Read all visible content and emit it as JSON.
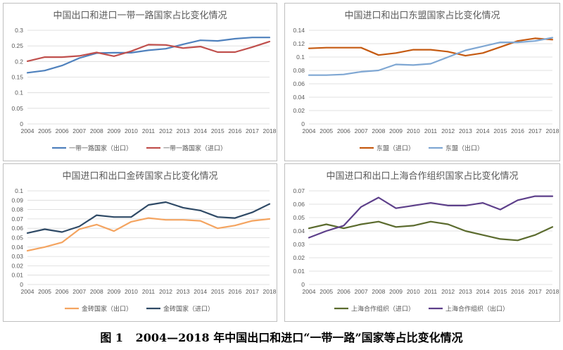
{
  "figure": {
    "caption_label": "图 1",
    "caption_text": "2004—2018 年中国出口和进口“一带一路”国家等占比变化情况"
  },
  "chart_data": [
    {
      "type": "line",
      "title": "中国出口和进口一带一路国家占比变化情况",
      "x": [
        "2004",
        "2005",
        "2006",
        "2007",
        "2008",
        "2009",
        "2010",
        "2011",
        "2012",
        "2013",
        "2014",
        "2015",
        "2016",
        "2017",
        "2018"
      ],
      "ylim": [
        0,
        0.3
      ],
      "yticks": [
        "0",
        "0.05",
        "0.1",
        "0.15",
        "0.2",
        "0.25",
        "0.3"
      ],
      "yticks_values": [
        0,
        0.05,
        0.1,
        0.15,
        0.2,
        0.25,
        0.3
      ],
      "grid": true,
      "legend": "bottom",
      "series": [
        {
          "name": "一带一路国家（出口）",
          "color": "#4f81bd",
          "values": [
            0.164,
            0.171,
            0.187,
            0.211,
            0.227,
            0.228,
            0.228,
            0.236,
            0.241,
            0.255,
            0.268,
            0.266,
            0.273,
            0.277,
            0.277
          ]
        },
        {
          "name": "一带一路国家（进口）",
          "color": "#c0504d",
          "values": [
            0.201,
            0.214,
            0.214,
            0.218,
            0.229,
            0.217,
            0.233,
            0.254,
            0.253,
            0.243,
            0.248,
            0.23,
            0.23,
            0.246,
            0.264
          ]
        }
      ]
    },
    {
      "type": "line",
      "title": "中国进口和出口东盟国家占比变化情况",
      "x": [
        "2004",
        "2005",
        "2006",
        "2007",
        "2008",
        "2009",
        "2010",
        "2011",
        "2012",
        "2013",
        "2014",
        "2015",
        "2016",
        "2017",
        "2018"
      ],
      "ylim": [
        0,
        0.14
      ],
      "yticks": [
        "0",
        "0.02",
        "0.04",
        "0.06",
        "0.08",
        "0.1",
        "0.12",
        "0.14"
      ],
      "yticks_values": [
        0,
        0.02,
        0.04,
        0.06,
        0.08,
        0.1,
        0.12,
        0.14
      ],
      "grid": true,
      "legend": "bottom",
      "series": [
        {
          "name": "东盟（进口）",
          "color": "#c55a11",
          "values": [
            0.113,
            0.114,
            0.114,
            0.114,
            0.103,
            0.106,
            0.111,
            0.111,
            0.108,
            0.102,
            0.106,
            0.115,
            0.124,
            0.128,
            0.126
          ]
        },
        {
          "name": "东盟（出口）",
          "color": "#7fa7d3",
          "values": [
            0.073,
            0.073,
            0.074,
            0.078,
            0.08,
            0.089,
            0.088,
            0.09,
            0.1,
            0.11,
            0.116,
            0.122,
            0.122,
            0.124,
            0.129
          ]
        }
      ]
    },
    {
      "type": "line",
      "title": "中国进口和出口金砖国家占比变化情况",
      "x": [
        "2004",
        "2005",
        "2006",
        "2007",
        "2008",
        "2009",
        "2010",
        "2011",
        "2012",
        "2013",
        "2014",
        "2015",
        "2016",
        "2017",
        "2018"
      ],
      "ylim": [
        0,
        0.1
      ],
      "yticks": [
        "0",
        "0.01",
        "0.02",
        "0.03",
        "0.04",
        "0.05",
        "0.06",
        "0.07",
        "0.08",
        "0.09",
        "0.1"
      ],
      "yticks_values": [
        0,
        0.01,
        0.02,
        0.03,
        0.04,
        0.05,
        0.06,
        0.07,
        0.08,
        0.09,
        0.1
      ],
      "grid": true,
      "legend": "bottom",
      "series": [
        {
          "name": "金砖国家（出口）",
          "color": "#f4a460",
          "values": [
            0.036,
            0.04,
            0.045,
            0.059,
            0.064,
            0.057,
            0.067,
            0.071,
            0.069,
            0.069,
            0.068,
            0.06,
            0.063,
            0.068,
            0.07
          ]
        },
        {
          "name": "金砖国家（进口）",
          "color": "#2f4a66",
          "values": [
            0.055,
            0.059,
            0.056,
            0.062,
            0.074,
            0.072,
            0.072,
            0.085,
            0.088,
            0.082,
            0.079,
            0.072,
            0.071,
            0.077,
            0.086
          ]
        }
      ]
    },
    {
      "type": "line",
      "title": "中国进口和出口上海合作组织国家占比变化情况",
      "x": [
        "2004",
        "2005",
        "2006",
        "2007",
        "2008",
        "2009",
        "2010",
        "2011",
        "2012",
        "2013",
        "2014",
        "2015",
        "2016",
        "2017",
        "2018"
      ],
      "ylim": [
        0,
        0.07
      ],
      "yticks": [
        "0",
        "0.01",
        "0.02",
        "0.03",
        "0.04",
        "0.05",
        "0.06",
        "0.07"
      ],
      "yticks_values": [
        0,
        0.01,
        0.02,
        0.03,
        0.04,
        0.05,
        0.06,
        0.07
      ],
      "grid": true,
      "legend": "bottom",
      "series": [
        {
          "name": "上海合作组织（进口）",
          "color": "#5b6b2e",
          "values": [
            0.042,
            0.045,
            0.042,
            0.045,
            0.047,
            0.043,
            0.044,
            0.047,
            0.045,
            0.04,
            0.037,
            0.034,
            0.033,
            0.037,
            0.043
          ]
        },
        {
          "name": "上海合作组织（出口）",
          "color": "#5d3f8a",
          "values": [
            0.035,
            0.04,
            0.044,
            0.058,
            0.065,
            0.057,
            0.059,
            0.061,
            0.059,
            0.059,
            0.061,
            0.056,
            0.063,
            0.066,
            0.066
          ]
        }
      ]
    }
  ]
}
